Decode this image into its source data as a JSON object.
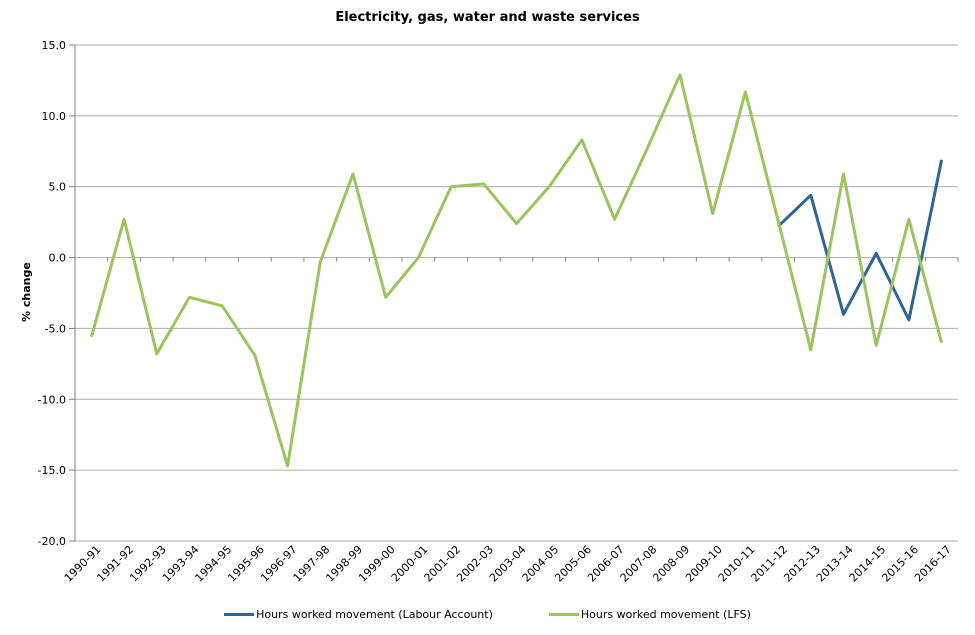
{
  "chart_data": {
    "type": "line",
    "title": "Electricity, gas, water and waste services",
    "ylabel": "% change",
    "ylim": [
      -20,
      15
    ],
    "ytick_step": 5,
    "y_tick_labels": [
      "15.0",
      "10.0",
      "5.0",
      "0.0",
      "-5.0",
      "-10.0",
      "-15.0",
      "-20.0"
    ],
    "grid": true,
    "legend_position": "bottom",
    "categories": [
      "1990-91",
      "1991-92",
      "1992-93",
      "1993-94",
      "1994-95",
      "1995-96",
      "1996-97",
      "1997-98",
      "1998-99",
      "1999-00",
      "2000-01",
      "2001-02",
      "2002-03",
      "2003-04",
      "2004-05",
      "2005-06",
      "2006-07",
      "2007-08",
      "2008-09",
      "2009-10",
      "2010-11",
      "2011-12",
      "2012-13",
      "2013-14",
      "2014-15",
      "2015-16",
      "2016-17"
    ],
    "series": [
      {
        "name": "Hours worked movement (Labour Account)",
        "color": "#2F6496",
        "values": [
          null,
          null,
          null,
          null,
          null,
          null,
          null,
          null,
          null,
          null,
          null,
          null,
          null,
          null,
          null,
          null,
          null,
          null,
          null,
          null,
          null,
          2.2,
          4.4,
          -4.0,
          0.3,
          -4.4,
          6.9
        ]
      },
      {
        "name": "Hours worked movement (LFS)",
        "color": "#9AC55E",
        "values": [
          -5.6,
          2.7,
          -6.8,
          -2.8,
          -3.4,
          -6.9,
          -14.7,
          -0.3,
          5.9,
          -2.8,
          0.0,
          5.0,
          5.2,
          2.4,
          5.0,
          8.3,
          2.7,
          7.7,
          12.9,
          3.1,
          11.7,
          2.6,
          -6.5,
          5.9,
          -6.2,
          2.7,
          -6.0
        ]
      }
    ],
    "colors": {
      "gridline": "#ABABAB",
      "axis": "#808080",
      "text": "#000000"
    }
  }
}
